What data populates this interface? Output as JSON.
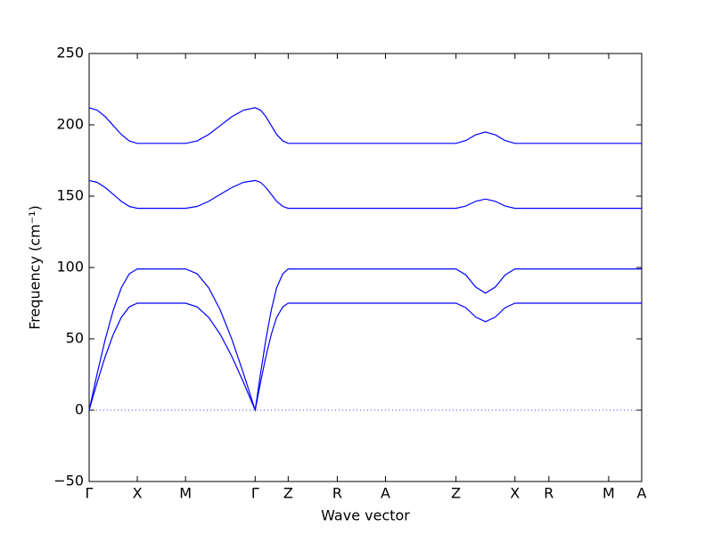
{
  "chart_data": {
    "type": "line",
    "x_label": "Wave vector",
    "y_label": "Frequency (cm⁻¹)",
    "x": [
      0,
      0.09,
      0.18,
      0.27,
      0.36,
      0.45,
      0.54,
      1.08,
      1.21,
      1.34,
      1.47,
      1.6,
      1.73,
      1.86,
      1.92,
      1.98,
      2.04,
      2.1,
      2.17,
      2.23,
      2.78,
      3.32,
      4.11,
      4.22,
      4.33,
      4.44,
      4.55,
      4.66,
      4.77,
      5.15,
      5.82,
      6.19
    ],
    "series": [
      {
        "color": "#0000ff",
        "values": [
          0,
          19.4,
          37.5,
          53.0,
          65.0,
          72.4,
          75,
          75,
          72.4,
          65.0,
          53.0,
          37.5,
          19.4,
          0,
          19.4,
          37.5,
          53.0,
          65.0,
          72.4,
          75,
          75,
          75,
          75,
          71.8,
          65.3,
          62,
          65.3,
          71.8,
          75,
          75,
          75,
          75
        ]
      },
      {
        "color": "#0000ff",
        "values": [
          0,
          25.6,
          49.5,
          70.0,
          85.7,
          95.6,
          99,
          99,
          95.6,
          85.7,
          70.0,
          49.5,
          25.6,
          0,
          25.6,
          49.5,
          70.0,
          85.7,
          95.6,
          99,
          99,
          99,
          99,
          94.8,
          86.3,
          82,
          86.3,
          94.8,
          99,
          99,
          99,
          99
        ]
      },
      {
        "color": "#0000ff",
        "values": [
          161,
          159.7,
          156.1,
          151.3,
          146.4,
          142.8,
          141.5,
          141.5,
          142.8,
          146.4,
          151.3,
          156.1,
          159.7,
          161,
          159.7,
          156.1,
          151.3,
          146.4,
          142.8,
          141.5,
          141.5,
          141.5,
          141.5,
          143.1,
          146.4,
          148,
          146.4,
          143.1,
          141.5,
          141.5,
          141.5,
          141.5
        ]
      },
      {
        "color": "#0000ff",
        "values": [
          212,
          210.3,
          205.8,
          199.5,
          193.3,
          188.7,
          187,
          187,
          188.7,
          193.3,
          199.5,
          205.8,
          210.3,
          212,
          210.3,
          205.8,
          199.5,
          193.3,
          188.7,
          187,
          187,
          187,
          187,
          189,
          193,
          195,
          193,
          189,
          187,
          187,
          187,
          187
        ]
      }
    ],
    "xlim": [
      0,
      6.19
    ],
    "xticks": [
      {
        "value": 0,
        "label": "Γ"
      },
      {
        "value": 0.54,
        "label": "X"
      },
      {
        "value": 1.08,
        "label": "M"
      },
      {
        "value": 1.86,
        "label": "Γ"
      },
      {
        "value": 2.23,
        "label": "Z"
      },
      {
        "value": 2.78,
        "label": "R"
      },
      {
        "value": 3.32,
        "label": "A"
      },
      {
        "value": 4.11,
        "label": "Z"
      },
      {
        "value": 4.77,
        "label": "X"
      },
      {
        "value": 5.15,
        "label": "R"
      },
      {
        "value": 5.82,
        "label": "M"
      },
      {
        "value": 6.19,
        "label": "A"
      }
    ],
    "ylim": [
      -50,
      250
    ],
    "yticks": [
      {
        "value": -50,
        "label": "−50"
      },
      0,
      50,
      100,
      150,
      200,
      250
    ]
  }
}
